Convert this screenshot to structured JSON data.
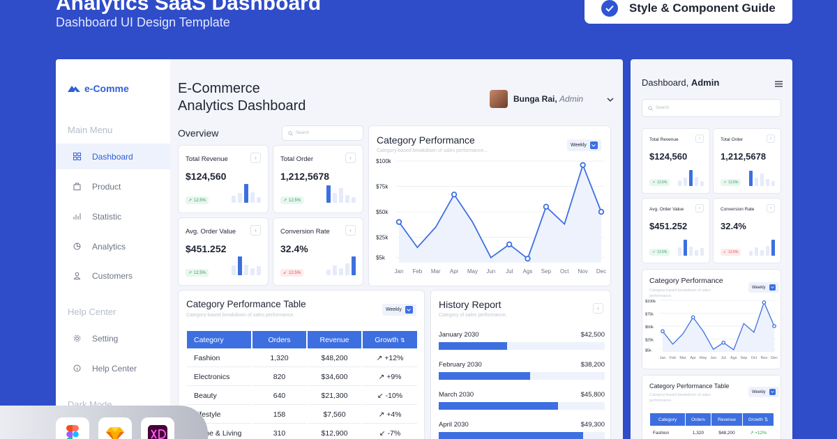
{
  "hero": {
    "title": "Analytics SaaS Dashboard",
    "subtitle": "Dashboard UI Design Template",
    "guide_button": "Style & Component Guide"
  },
  "sidebar": {
    "logo": "e-Comme",
    "main_menu_heading": "Main Menu",
    "items": [
      {
        "label": "Dashboard",
        "icon": "grid-icon"
      },
      {
        "label": "Product",
        "icon": "bag-icon"
      },
      {
        "label": "Statistic",
        "icon": "chart-icon"
      },
      {
        "label": "Analytics",
        "icon": "pie-icon"
      },
      {
        "label": "Customers",
        "icon": "user-icon"
      }
    ],
    "help_heading": "Help Center",
    "help_items": [
      {
        "label": "Setting",
        "icon": "gear-icon"
      },
      {
        "label": "Help Center",
        "icon": "info-icon"
      }
    ],
    "dark_mode": "Dark Mode"
  },
  "header": {
    "title_line1": "E-Commerce",
    "title_line2": "Analytics Dashboard",
    "user_name": "Bunga Rai,",
    "user_role": "Admin"
  },
  "overview": {
    "heading": "Overview",
    "search_placeholder": "Search"
  },
  "stats": [
    {
      "label": "Total Revenue",
      "value": "$124,560",
      "change": "12.5%",
      "trend": "up",
      "bars": [
        0.35,
        0.5,
        0.95,
        0.55,
        0.3
      ],
      "hi": 2
    },
    {
      "label": "Total Order",
      "value": "1,212,5678",
      "change": "12.5%",
      "trend": "up",
      "bars": [
        0.9,
        0.5,
        0.75,
        0.4,
        0.3
      ],
      "hi": 0
    },
    {
      "label": "Avg. Order Value",
      "value": "$451.252",
      "change": "12.5%",
      "trend": "up",
      "bars": [
        0.5,
        0.95,
        0.55,
        0.35,
        0.45
      ],
      "hi": 1
    },
    {
      "label": "Conversion Rate",
      "value": "32.4%",
      "change": "12.5%",
      "trend": "down",
      "bars": [
        0.3,
        0.5,
        0.35,
        0.6,
        0.95
      ],
      "hi": 4
    }
  ],
  "category_performance": {
    "title": "Category Performance",
    "subtitle": "Category-based breakdown of sales performance...",
    "period": "Weekly"
  },
  "chart_data": {
    "type": "line",
    "title": "Category Performance",
    "categories": [
      "Jan",
      "Feb",
      "Mar",
      "Apr",
      "May",
      "Jun",
      "Jul",
      "Ags",
      "Sep",
      "Oct",
      "Nov",
      "Dec"
    ],
    "values": [
      40000,
      15000,
      35000,
      67000,
      40000,
      5000,
      18000,
      4000,
      55000,
      38000,
      96000,
      50000
    ],
    "y_ticks": [
      "$100k",
      "$75k",
      "$50k",
      "$25k",
      "$5k"
    ],
    "ylim": [
      0,
      100000
    ],
    "grid": true
  },
  "category_table": {
    "title": "Category Performance Table",
    "subtitle": "Category-based breakdown of sales performance.",
    "period": "Weekly",
    "columns": [
      "Category",
      "Orders",
      "Revenue",
      "Growth"
    ],
    "rows": [
      {
        "category": "Fashion",
        "orders": "1,320",
        "revenue": "$48,200",
        "growth": "+12%",
        "trend": "up"
      },
      {
        "category": "Electronics",
        "orders": "820",
        "revenue": "$34,600",
        "growth": "+9%",
        "trend": "up"
      },
      {
        "category": "Beauty",
        "orders": "640",
        "revenue": "$21,300",
        "growth": "-10%",
        "trend": "down"
      },
      {
        "category": "Lifestyle",
        "orders": "158",
        "revenue": "$7,560",
        "growth": "+4%",
        "trend": "up"
      },
      {
        "category": "Home & Living",
        "orders": "310",
        "revenue": "$12,900",
        "growth": "-7%",
        "trend": "down"
      }
    ]
  },
  "history": {
    "title": "History Report",
    "subtitle": "Category of sales performance.",
    "rows": [
      {
        "month": "January 2030",
        "value": "$42,500",
        "fill": 0.41
      },
      {
        "month": "February 2030",
        "value": "$38,200",
        "fill": 0.55
      },
      {
        "month": "March 2030",
        "value": "$45,800",
        "fill": 0.72
      },
      {
        "month": "April 2030",
        "value": "$49,300",
        "fill": 0.87
      }
    ]
  },
  "mobile": {
    "title_prefix": "Dashboard,",
    "title_bold": "Admin",
    "search_placeholder": "Search",
    "cat_perf_title": "Category Performance",
    "cat_perf_sub": "Category-based breakdown of sales performance.",
    "table_title": "Category Performance Table",
    "table_sub": "Category-based breakdown of sales performance.",
    "period": "Weekly",
    "table_first_row": {
      "category": "Fashion",
      "orders": "1,320",
      "revenue": "$48,200",
      "growth": "+12%"
    }
  },
  "tools": [
    "figma-icon",
    "sketch-icon",
    "xd-icon"
  ],
  "colors": {
    "brand": "#2f4cc9",
    "accent": "#3d6fe0",
    "up": "#2e9e5b",
    "down": "#e04848"
  }
}
